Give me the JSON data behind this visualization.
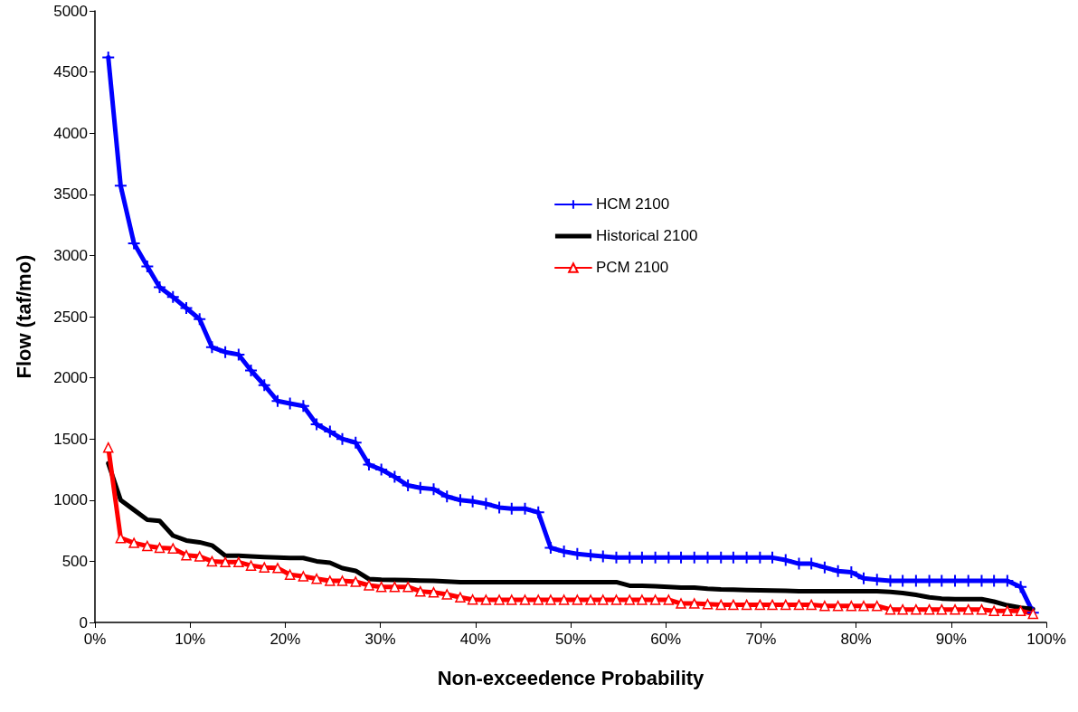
{
  "chart_data": {
    "type": "line",
    "xlabel": "Non-exceedence Probability",
    "ylabel": "Flow (taf/mo)",
    "x": [
      1.4,
      2.7,
      4.1,
      5.5,
      6.8,
      8.2,
      9.6,
      11.0,
      12.3,
      13.7,
      15.1,
      16.4,
      17.8,
      19.2,
      20.5,
      21.9,
      23.3,
      24.7,
      26.0,
      27.4,
      28.8,
      30.1,
      31.5,
      32.9,
      34.2,
      35.6,
      37.0,
      38.4,
      39.7,
      41.1,
      42.5,
      43.8,
      45.2,
      46.6,
      47.9,
      49.3,
      50.7,
      52.1,
      53.4,
      54.8,
      56.2,
      57.5,
      58.9,
      60.3,
      61.6,
      63.0,
      64.4,
      65.8,
      67.1,
      68.5,
      69.9,
      71.2,
      72.6,
      74.0,
      75.3,
      76.7,
      78.1,
      79.5,
      80.8,
      82.2,
      83.6,
      84.9,
      86.3,
      87.7,
      89.0,
      90.4,
      91.8,
      93.2,
      94.5,
      95.9,
      97.3,
      98.6
    ],
    "series": [
      {
        "name": "HCM 2100",
        "color": "#0000ff",
        "marker": "cross",
        "values": [
          4620,
          3570,
          3100,
          2910,
          2740,
          2660,
          2570,
          2480,
          2250,
          2210,
          2190,
          2060,
          1940,
          1810,
          1790,
          1770,
          1620,
          1560,
          1500,
          1470,
          1290,
          1250,
          1190,
          1120,
          1100,
          1090,
          1030,
          1000,
          990,
          970,
          940,
          930,
          930,
          900,
          610,
          580,
          560,
          550,
          540,
          530,
          530,
          530,
          530,
          530,
          530,
          530,
          530,
          530,
          530,
          530,
          530,
          530,
          510,
          480,
          480,
          450,
          420,
          410,
          360,
          350,
          340,
          340,
          340,
          340,
          340,
          340,
          340,
          340,
          340,
          340,
          290,
          80
        ]
      },
      {
        "name": "Historical 2100",
        "color": "#000000",
        "marker": "none",
        "values": [
          1300,
          1000,
          920,
          840,
          830,
          710,
          670,
          655,
          630,
          545,
          545,
          540,
          535,
          530,
          527,
          527,
          500,
          488,
          444,
          422,
          355,
          350,
          348,
          346,
          343,
          340,
          335,
          330,
          330,
          330,
          330,
          330,
          330,
          330,
          330,
          330,
          330,
          330,
          330,
          330,
          300,
          300,
          295,
          290,
          285,
          285,
          275,
          270,
          268,
          265,
          263,
          260,
          258,
          256,
          255,
          255,
          255,
          255,
          255,
          255,
          250,
          240,
          225,
          205,
          195,
          190,
          190,
          190,
          170,
          140,
          120,
          110
        ]
      },
      {
        "name": "PCM 2100",
        "color": "#ff0000",
        "marker": "triangle",
        "values": [
          1430,
          690,
          650,
          625,
          610,
          605,
          550,
          540,
          500,
          493,
          493,
          465,
          450,
          445,
          390,
          377,
          357,
          340,
          340,
          333,
          303,
          291,
          291,
          291,
          254,
          246,
          229,
          205,
          187,
          185,
          185,
          185,
          185,
          185,
          185,
          185,
          185,
          185,
          185,
          185,
          185,
          185,
          185,
          185,
          155,
          155,
          150,
          145,
          145,
          145,
          145,
          145,
          145,
          145,
          145,
          135,
          135,
          135,
          135,
          135,
          106,
          106,
          106,
          106,
          106,
          106,
          106,
          106,
          95,
          95,
          95,
          70
        ]
      }
    ],
    "xlim": [
      0,
      100
    ],
    "xticks": [
      {
        "value": 0,
        "label": "0%"
      },
      {
        "value": 10,
        "label": "10%"
      },
      {
        "value": 20,
        "label": "20%"
      },
      {
        "value": 30,
        "label": "30%"
      },
      {
        "value": 40,
        "label": "40%"
      },
      {
        "value": 50,
        "label": "50%"
      },
      {
        "value": 60,
        "label": "60%"
      },
      {
        "value": 70,
        "label": "70%"
      },
      {
        "value": 80,
        "label": "80%"
      },
      {
        "value": 90,
        "label": "90%"
      },
      {
        "value": 100,
        "label": "100%"
      }
    ],
    "ylim": [
      0,
      5000
    ],
    "yticks": [
      0,
      500,
      1000,
      1500,
      2000,
      2500,
      3000,
      3500,
      4000,
      4500,
      5000
    ],
    "legend": "top",
    "grid": false,
    "line_style": "solid"
  }
}
